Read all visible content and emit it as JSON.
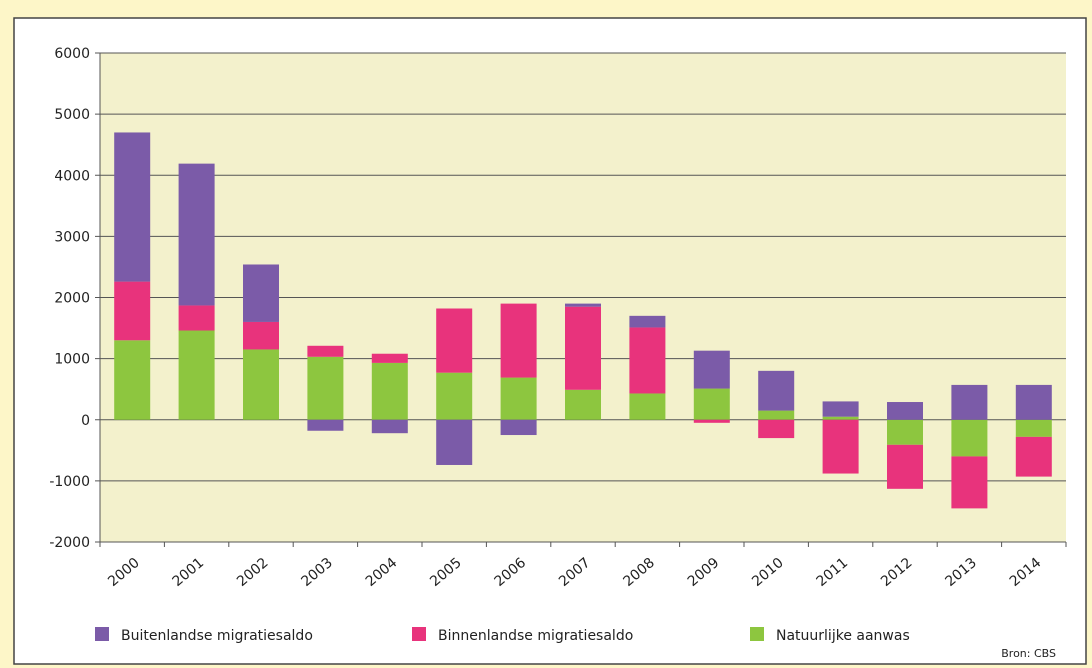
{
  "chart_data": {
    "type": "stacked-bar",
    "categories": [
      "2000",
      "2001",
      "2002",
      "2003",
      "2004",
      "2005",
      "2006",
      "2007",
      "2008",
      "2009",
      "2010",
      "2011",
      "2012",
      "2013",
      "2014"
    ],
    "series": [
      {
        "name": "Buitenlandse migratiesaldo",
        "color": "#7b5ba8",
        "values": [
          2440,
          2320,
          940,
          -180,
          -220,
          -740,
          -250,
          50,
          190,
          620,
          650,
          250,
          290,
          570,
          570
        ]
      },
      {
        "name": "Binnenlandse migratiesaldo",
        "color": "#e8337c",
        "values": [
          960,
          410,
          450,
          180,
          150,
          1050,
          1210,
          1360,
          1080,
          -50,
          -300,
          -880,
          -720,
          -850,
          -650
        ]
      },
      {
        "name": "Natuurlijke aanwas",
        "color": "#8dc63f",
        "values": [
          1300,
          1460,
          1150,
          1030,
          930,
          770,
          690,
          490,
          430,
          510,
          150,
          50,
          -410,
          -600,
          -280
        ]
      }
    ],
    "ylim": [
      -2000,
      6000
    ],
    "yticks": [
      -2000,
      -1000,
      0,
      1000,
      2000,
      3000,
      4000,
      5000,
      6000
    ],
    "grid": true,
    "source": "Bron: CBS"
  }
}
